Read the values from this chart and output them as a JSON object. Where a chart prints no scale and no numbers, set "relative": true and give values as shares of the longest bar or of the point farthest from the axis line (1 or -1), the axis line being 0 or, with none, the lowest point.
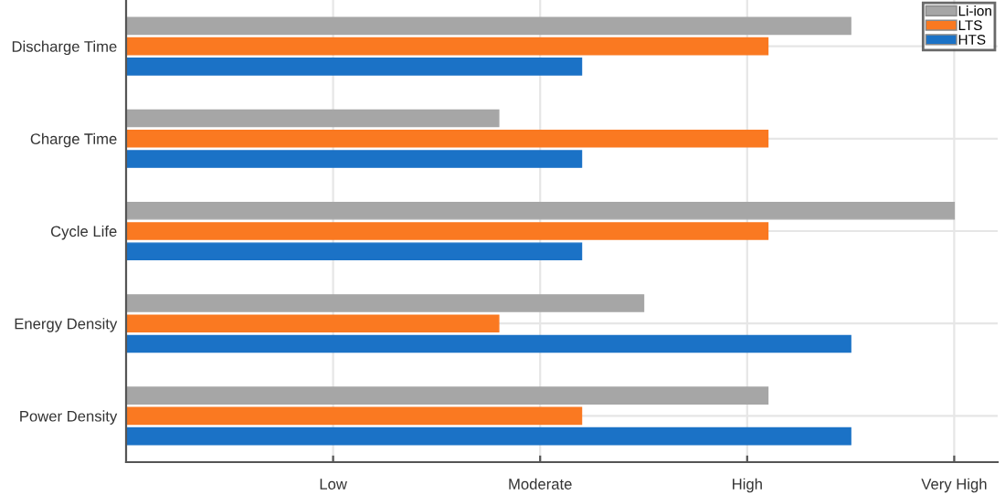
{
  "chart_data": {
    "type": "bar",
    "orientation": "horizontal",
    "categories": [
      "Discharge Time",
      "Charge Time",
      "Cycle Life",
      "Energy Density",
      "Power Density"
    ],
    "series": [
      {
        "name": "Li-ion",
        "color": "#a6a6a6",
        "values": [
          0.875,
          0.45,
          1,
          0.625,
          0.775
        ]
      },
      {
        "name": "LTS",
        "color": "#fa7921",
        "values": [
          0.775,
          0.775,
          0.775,
          0.45,
          0.55
        ]
      },
      {
        "name": "HTS",
        "color": "#1b72c6",
        "values": [
          0.55,
          0.55,
          0.55,
          0.875,
          0.875
        ]
      }
    ],
    "relative": true,
    "annotations": [
      "Low",
      "Moderate",
      "High",
      "Very High"
    ],
    "grid": true,
    "legend": "top right"
  }
}
